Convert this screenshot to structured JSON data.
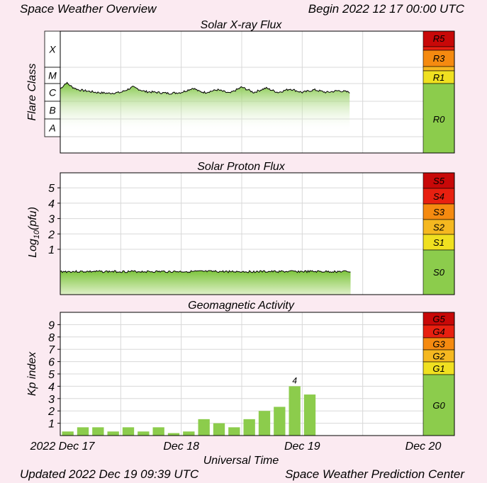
{
  "header": {
    "left": "Space Weather Overview",
    "right": "Begin 2022 12 17 00:00 UTC"
  },
  "footer": {
    "updated": "Updated 2022 Dec 19 09:39 UTC",
    "center": "Space Weather Prediction Center"
  },
  "xaxis": {
    "label": "Universal Time",
    "ticks": [
      "2022 Dec 17",
      "Dec 18",
      "Dec 19",
      "Dec 20"
    ],
    "range_days": [
      0,
      3
    ]
  },
  "colors": {
    "green": "#8ccc4c",
    "yellow": "#f0e020",
    "gold": "#f5b820",
    "orange": "#f58a10",
    "red": "#e82010",
    "darkred": "#c80808",
    "kp_bar": "#8ccc4c"
  },
  "chart_data": [
    {
      "type": "area",
      "title": "Solar X-ray Flux",
      "ylabel": "Flare Class",
      "classes": [
        "X",
        "M",
        "C",
        "B",
        "A"
      ],
      "scale": "log",
      "series": [
        {
          "x_days": [
            0,
            0.05,
            0.1,
            0.15,
            0.2,
            0.3,
            0.4,
            0.5,
            0.6,
            0.7,
            0.8,
            0.9,
            1.0,
            1.1,
            1.15,
            1.2,
            1.3,
            1.4,
            1.5,
            1.6,
            1.7,
            1.8,
            1.9,
            2.0,
            2.1,
            2.2,
            2.3,
            2.4,
            2.5,
            2.6,
            2.7,
            2.8,
            2.9,
            3.0
          ],
          "level": [
            3.2,
            3.55,
            3.3,
            3.15,
            3.1,
            3.0,
            2.95,
            3.0,
            3.3,
            3.05,
            3.0,
            2.95,
            3.0,
            3.25,
            3.05,
            3.0,
            3.15,
            2.95,
            3.3,
            3.0,
            3.25,
            3.0,
            3.2,
            3.0,
            3.15,
            3.0,
            3.1,
            3.0,
            3.15,
            3.0,
            3.05,
            3.0,
            3.0,
            3.0
          ]
        }
      ],
      "data_end_days": 2.4,
      "scale_bar": [
        {
          "label": "R5",
          "color": "#c80808"
        },
        {
          "label": "R3",
          "color": "#f58a10"
        },
        {
          "label": "R1",
          "color": "#f0e020"
        },
        {
          "label": "R0",
          "color": "#8ccc4c"
        }
      ]
    },
    {
      "type": "area",
      "title": "Solar Proton Flux",
      "ylabel": "Log",
      "ylabel_sub": "10",
      "ylabel_unit": "(pfu)",
      "yticks": [
        "1",
        "2",
        "3",
        "4",
        "5"
      ],
      "series": [
        {
          "x_days": [
            0,
            2.4
          ],
          "log_pfu": [
            -0.45,
            -0.45
          ]
        }
      ],
      "scale_bar": [
        {
          "label": "S5",
          "color": "#c80808"
        },
        {
          "label": "S4",
          "color": "#e82010"
        },
        {
          "label": "S3",
          "color": "#f58a10"
        },
        {
          "label": "S2",
          "color": "#f5b820"
        },
        {
          "label": "S1",
          "color": "#f0e020"
        },
        {
          "label": "S0",
          "color": "#8ccc4c"
        }
      ]
    },
    {
      "type": "bar",
      "title": "Geomagnetic Activity",
      "ylabel": "Kp index",
      "yticks": [
        "1",
        "2",
        "3",
        "4",
        "5",
        "6",
        "7",
        "8",
        "9"
      ],
      "ylim": [
        0,
        10
      ],
      "bar_width_days": 0.125,
      "values": [
        0.33,
        0.67,
        0.67,
        0.33,
        0.67,
        0.33,
        0.67,
        0.2,
        0.33,
        1.33,
        1.0,
        0.67,
        1.33,
        2.0,
        2.33,
        4.0,
        3.33
      ],
      "max_label": "4",
      "max_index": 15,
      "scale_bar": [
        {
          "label": "G5",
          "color": "#c80808"
        },
        {
          "label": "G4",
          "color": "#e82010"
        },
        {
          "label": "G3",
          "color": "#f58a10"
        },
        {
          "label": "G2",
          "color": "#f5b820"
        },
        {
          "label": "G1",
          "color": "#f0e020"
        },
        {
          "label": "G0",
          "color": "#8ccc4c"
        }
      ]
    }
  ]
}
